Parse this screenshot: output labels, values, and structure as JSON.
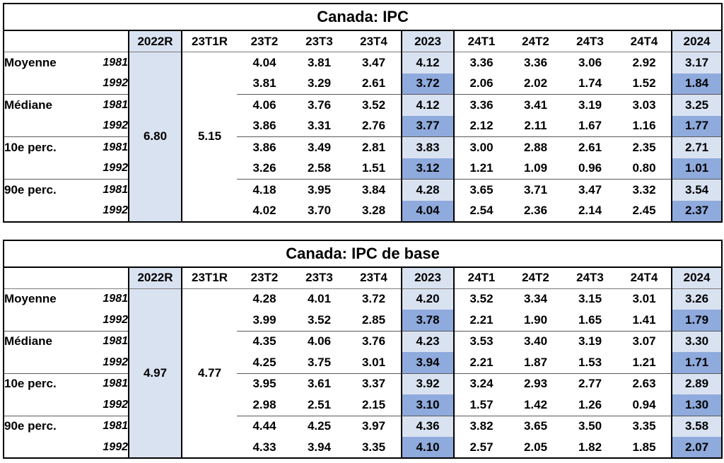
{
  "colors": {
    "light_blue": "#d9e2f1",
    "dark_blue": "#8faadc",
    "border": "#000000",
    "group_line": "#595959"
  },
  "tables": [
    {
      "title": "Canada: IPC",
      "col_headers": [
        "2022R",
        "23T1R",
        "23T2",
        "23T3",
        "23T4",
        "2023",
        "24T1",
        "24T2",
        "24T3",
        "24T4",
        "2024"
      ],
      "v2022r": "6.80",
      "v23t1r": "5.15",
      "groups": [
        {
          "label": "Moyenne",
          "rows": [
            {
              "year": "1981",
              "values": [
                "4.04",
                "3.81",
                "3.47",
                "4.12",
                "3.36",
                "3.36",
                "3.06",
                "2.92",
                "3.17"
              ]
            },
            {
              "year": "1992",
              "values": [
                "3.81",
                "3.29",
                "2.61",
                "3.72",
                "2.06",
                "2.02",
                "1.74",
                "1.52",
                "1.84"
              ]
            }
          ]
        },
        {
          "label": "Médiane",
          "rows": [
            {
              "year": "1981",
              "values": [
                "4.06",
                "3.76",
                "3.52",
                "4.12",
                "3.36",
                "3.41",
                "3.19",
                "3.03",
                "3.25"
              ]
            },
            {
              "year": "1992",
              "values": [
                "3.86",
                "3.31",
                "2.76",
                "3.77",
                "2.12",
                "2.11",
                "1.67",
                "1.16",
                "1.77"
              ]
            }
          ]
        },
        {
          "label": "10e perc.",
          "rows": [
            {
              "year": "1981",
              "values": [
                "3.86",
                "3.49",
                "2.81",
                "3.83",
                "3.00",
                "2.88",
                "2.61",
                "2.35",
                "2.71"
              ]
            },
            {
              "year": "1992",
              "values": [
                "3.26",
                "2.58",
                "1.51",
                "3.12",
                "1.21",
                "1.09",
                "0.96",
                "0.80",
                "1.01"
              ]
            }
          ]
        },
        {
          "label": "90e perc.",
          "rows": [
            {
              "year": "1981",
              "values": [
                "4.18",
                "3.95",
                "3.84",
                "4.28",
                "3.65",
                "3.71",
                "3.47",
                "3.32",
                "3.54"
              ]
            },
            {
              "year": "1992",
              "values": [
                "4.02",
                "3.70",
                "3.28",
                "4.04",
                "2.54",
                "2.36",
                "2.14",
                "2.45",
                "2.37"
              ]
            }
          ]
        }
      ]
    },
    {
      "title": "Canada: IPC de base",
      "col_headers": [
        "2022R",
        "23T1R",
        "23T2",
        "23T3",
        "23T4",
        "2023",
        "24T1",
        "24T2",
        "24T3",
        "24T4",
        "2024"
      ],
      "v2022r": "4.97",
      "v23t1r": "4.77",
      "groups": [
        {
          "label": "Moyenne",
          "rows": [
            {
              "year": "1981",
              "values": [
                "4.28",
                "4.01",
                "3.72",
                "4.20",
                "3.52",
                "3.34",
                "3.15",
                "3.01",
                "3.26"
              ]
            },
            {
              "year": "1992",
              "values": [
                "3.99",
                "3.52",
                "2.85",
                "3.78",
                "2.21",
                "1.90",
                "1.65",
                "1.41",
                "1.79"
              ]
            }
          ]
        },
        {
          "label": "Médiane",
          "rows": [
            {
              "year": "1981",
              "values": [
                "4.35",
                "4.06",
                "3.76",
                "4.23",
                "3.53",
                "3.40",
                "3.19",
                "3.07",
                "3.30"
              ]
            },
            {
              "year": "1992",
              "values": [
                "4.25",
                "3.75",
                "3.01",
                "3.94",
                "2.21",
                "1.87",
                "1.53",
                "1.21",
                "1.71"
              ]
            }
          ]
        },
        {
          "label": "10e perc.",
          "rows": [
            {
              "year": "1981",
              "values": [
                "3.95",
                "3.61",
                "3.37",
                "3.92",
                "3.24",
                "2.93",
                "2.77",
                "2.63",
                "2.89"
              ]
            },
            {
              "year": "1992",
              "values": [
                "2.98",
                "2.51",
                "2.15",
                "3.10",
                "1.57",
                "1.42",
                "1.26",
                "0.94",
                "1.30"
              ]
            }
          ]
        },
        {
          "label": "90e perc.",
          "rows": [
            {
              "year": "1981",
              "values": [
                "4.44",
                "4.25",
                "3.97",
                "4.36",
                "3.82",
                "3.65",
                "3.50",
                "3.35",
                "3.58"
              ]
            },
            {
              "year": "1992",
              "values": [
                "4.33",
                "3.94",
                "3.35",
                "4.10",
                "2.57",
                "2.05",
                "1.82",
                "1.85",
                "2.07"
              ]
            }
          ]
        }
      ]
    }
  ]
}
